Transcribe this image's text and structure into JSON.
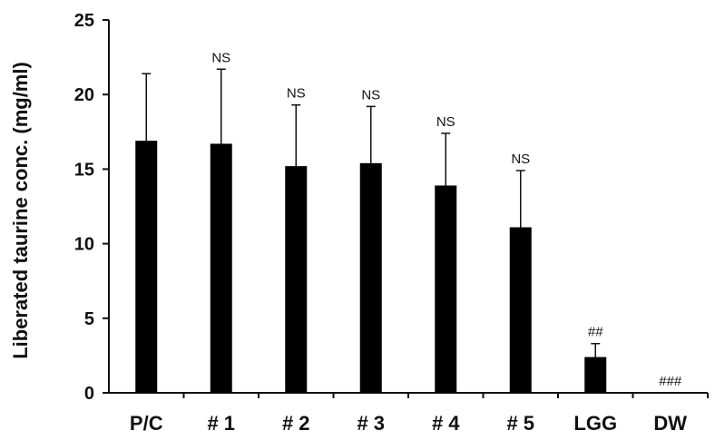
{
  "chart_data": {
    "type": "bar",
    "title": "",
    "xlabel": "",
    "ylabel": "Liberated taurine conc. (mg/ml)",
    "ylim": [
      0,
      25
    ],
    "yticks": [
      0,
      5,
      10,
      15,
      20,
      25
    ],
    "categories": [
      "P/C",
      "# 1",
      "# 2",
      "# 3",
      "# 4",
      "# 5",
      "LGG",
      "DW"
    ],
    "values": [
      16.9,
      16.7,
      15.2,
      15.4,
      13.9,
      11.1,
      2.4,
      0
    ],
    "error_upper": [
      4.5,
      5.0,
      4.1,
      3.8,
      3.5,
      3.8,
      0.9,
      0
    ],
    "annotations": [
      "",
      "NS",
      "NS",
      "NS",
      "NS",
      "NS",
      "##",
      "###"
    ],
    "bar_color": "#000000",
    "grid": false,
    "legend": "none"
  }
}
